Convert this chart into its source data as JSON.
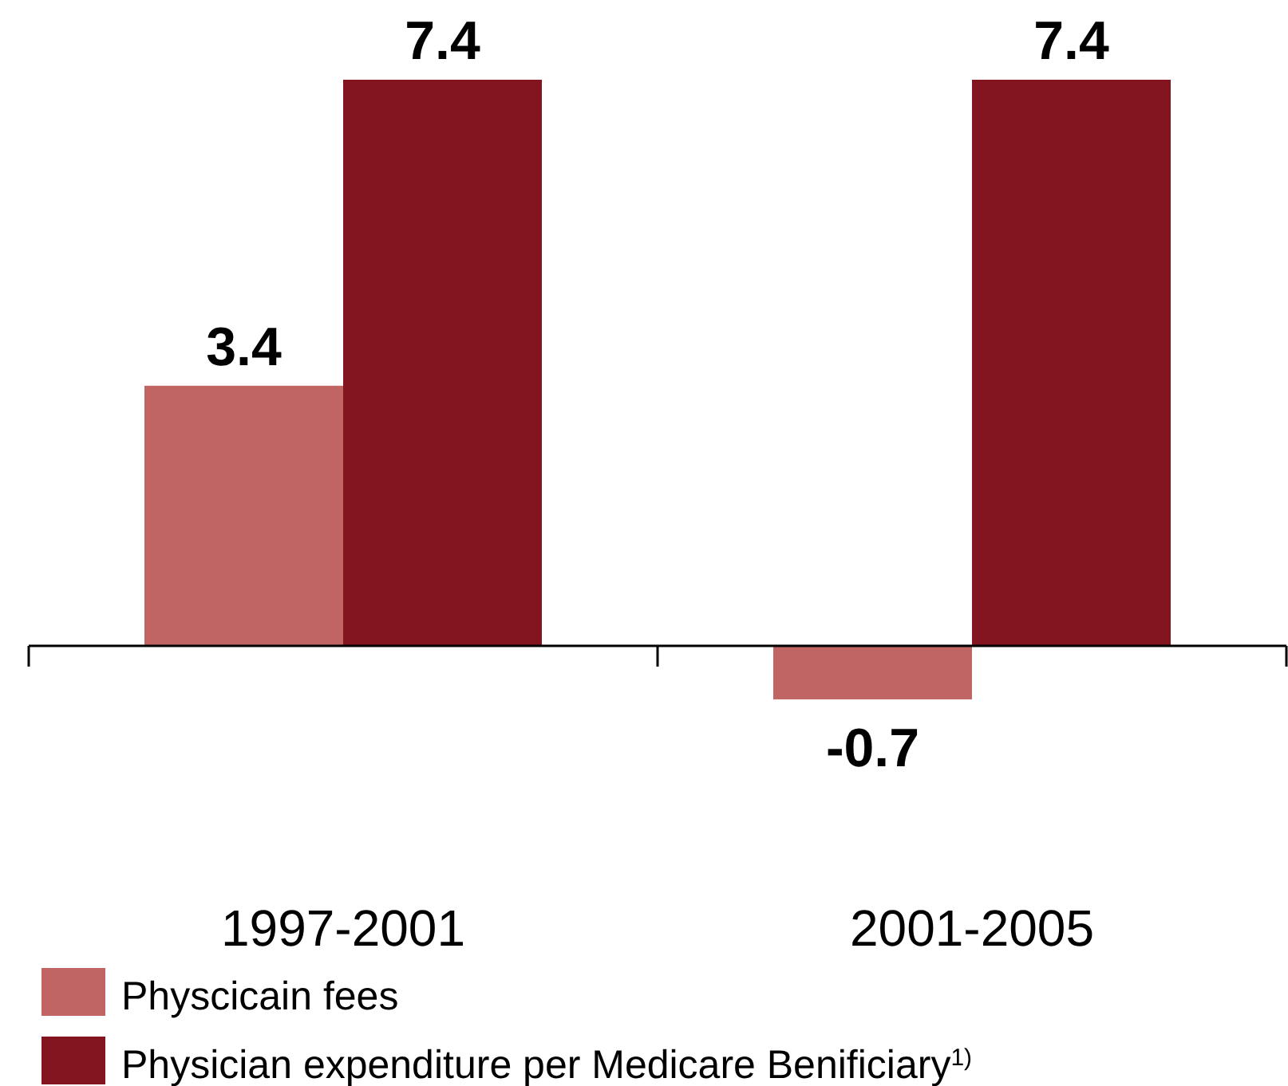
{
  "chart_data": {
    "type": "bar",
    "categories": [
      "1997-2001",
      "2001-2005"
    ],
    "series": [
      {
        "name": "Physcicain fees",
        "color": "#c06563",
        "values": [
          3.4,
          -0.7
        ]
      },
      {
        "name": "Physician expenditure per Medicare Benificiary$^{1)}$",
        "color": "#821520",
        "values": [
          7.4,
          7.4
        ]
      }
    ],
    "data_labels": true,
    "legend": "bottom left"
  }
}
